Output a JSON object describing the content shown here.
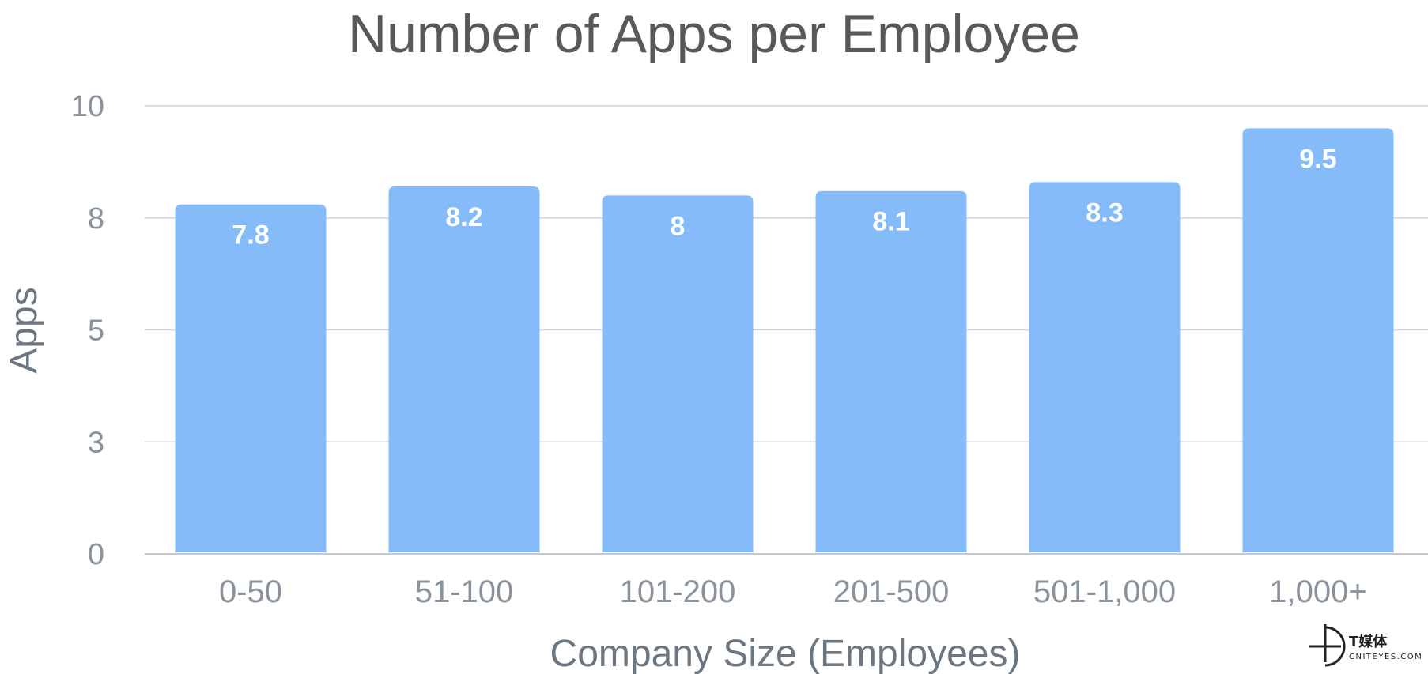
{
  "chart_data": {
    "type": "bar",
    "title": "Number of Apps per Employee",
    "xlabel": "Company Size (Employees)",
    "ylabel": "Apps",
    "categories": [
      "0-50",
      "51-100",
      "101-200",
      "201-500",
      "501-1,000",
      "1,000+"
    ],
    "values": [
      7.8,
      8.2,
      8,
      8.1,
      8.3,
      9.5
    ],
    "data_labels": [
      "7.8",
      "8.2",
      "8",
      "8.1",
      "8.3",
      "9.5"
    ],
    "ylim": [
      0,
      10
    ],
    "yticks": [
      0,
      2.5,
      5,
      7.5,
      10
    ],
    "ytick_labels": [
      "0",
      "3",
      "5",
      "8",
      "10"
    ],
    "grid": true,
    "legend": "none",
    "colors": {
      "bar": "#85bbf8",
      "grid": "#cfd3d6"
    }
  },
  "watermark": {
    "text": "T媒体",
    "subtext": "CNITEYES.COM"
  }
}
